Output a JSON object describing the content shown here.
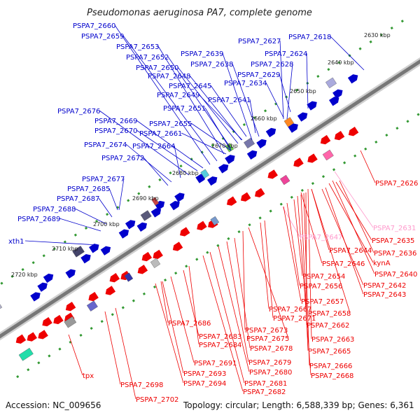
{
  "title": "Pseudomonas aeruginosa PA7, complete genome",
  "footer": {
    "accession": "Accession: NC_009656",
    "topology": "Topology: circular; Length: 6,588,339 bp; Genes: 6,361"
  },
  "colors": {
    "forward": "#0000cc",
    "reverse": "#ee0000",
    "pink": "#ff99cc",
    "backbone": "#777777",
    "dots": "#339933"
  },
  "scale_labels": [
    "2630 kbp",
    "2640 kbp",
    "2650 kbp",
    "2660 kbp",
    "2670 kbp",
    "2680 kbp",
    "2690 kbp",
    "2700 kbp",
    "2710 kbp",
    "2720 kbp"
  ],
  "forward_genes": [
    "PSPA7_2660",
    "PSPA7_2659",
    "PSPA7_2653",
    "PSPA7_2652",
    "PSPA7_2650",
    "PSPA7_2648",
    "PSPA7_2645",
    "PSPA7_2649",
    "PSPA7_2651",
    "PSPA7_2639",
    "PSPA7_2638",
    "PSPA7_2627",
    "PSPA7_2628",
    "PSPA7_2624",
    "PSPA7_2618",
    "PSPA7_2629",
    "PSPA7_2634",
    "PSPA7_2641",
    "PSPA7_2676",
    "PSPA7_2669",
    "PSPA7_2670",
    "PSPA7_2655",
    "PSPA7_2661",
    "PSPA7_2674",
    "PSPA7_2664",
    "PSPA7_2672",
    "PSPA7_2677",
    "PSPA7_2685",
    "PSPA7_2687",
    "PSPA7_2688",
    "PSPA7_2689",
    "xth1"
  ],
  "reverse_genes": [
    "PSPA7_2626",
    "PSPA7_2631",
    "PSPA7_2647",
    "PSPA7_2635",
    "PSPA7_2644",
    "PSPA7_2636",
    "PSPA7_2646",
    "kynA",
    "PSPA7_2640",
    "PSPA7_2654",
    "PSPA7_2642",
    "PSPA7_2656",
    "PSPA7_2643",
    "PSPA7_2657",
    "PSPA7_2667",
    "PSPA7_2671",
    "PSPA7_2658",
    "PSPA7_2662",
    "PSPA7_2686",
    "PSPA7_2673",
    "PSPA7_2683",
    "PSPA7_2675",
    "PSPA7_2663",
    "PSPA7_2684",
    "PSPA7_2678",
    "PSPA7_2665",
    "PSPA7_2679",
    "PSPA7_2666",
    "PSPA7_2691",
    "PSPA7_2680",
    "PSPA7_2668",
    "PSPA7_2693",
    "PSPA7_2681",
    "PSPA7_2694",
    "PSPA7_2682",
    "tpx",
    "PSPA7_2698",
    "PSPA7_2702"
  ]
}
